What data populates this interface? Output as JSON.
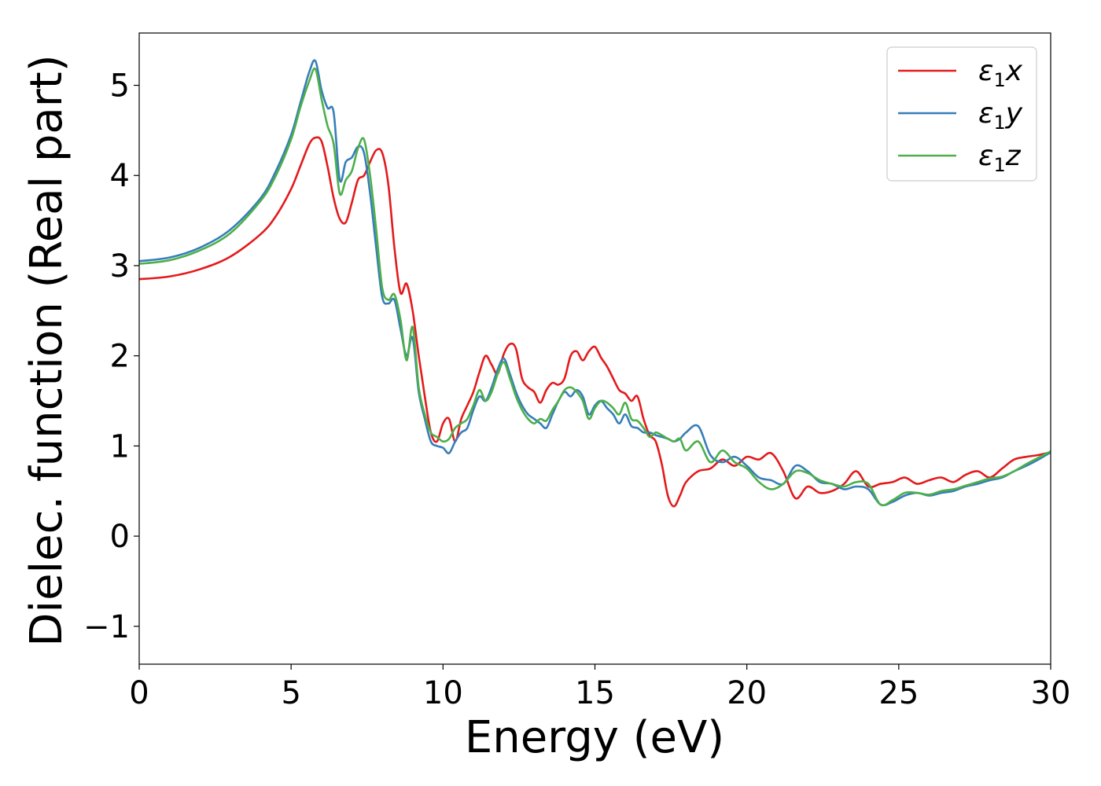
{
  "chart_data": {
    "type": "line",
    "title": "",
    "xlabel": "Energy (eV)",
    "ylabel": "Dielec. function (Real part)",
    "xlim": [
      0,
      30
    ],
    "ylim": [
      -1.42,
      5.58
    ],
    "xticks": [
      0,
      5,
      10,
      15,
      20,
      25,
      30
    ],
    "xtick_labels": [
      "0",
      "5",
      "10",
      "15",
      "20",
      "25",
      "30"
    ],
    "yticks": [
      -1,
      0,
      1,
      2,
      3,
      4,
      5
    ],
    "ytick_labels": [
      "−1",
      "0",
      "1",
      "2",
      "3",
      "4",
      "5"
    ],
    "grid": false,
    "legend_position": "top-right",
    "series": [
      {
        "name": "ε₁x",
        "legend_base": "ε",
        "legend_sub": "1",
        "legend_suffix": "x",
        "color": "#e41a1c",
        "x": [
          0,
          1,
          2,
          3,
          4,
          4.5,
          5,
          5.3,
          5.6,
          5.8,
          6.0,
          6.2,
          6.4,
          6.6,
          6.8,
          7.0,
          7.2,
          7.4,
          7.6,
          7.8,
          8.0,
          8.2,
          8.4,
          8.6,
          8.8,
          9.0,
          9.2,
          9.4,
          9.6,
          9.8,
          10.0,
          10.2,
          10.4,
          10.6,
          10.8,
          11.0,
          11.2,
          11.4,
          11.6,
          11.8,
          12.0,
          12.2,
          12.4,
          12.6,
          12.8,
          13.0,
          13.2,
          13.4,
          13.6,
          13.8,
          14.0,
          14.2,
          14.4,
          14.6,
          14.8,
          15.0,
          15.2,
          15.4,
          15.6,
          15.8,
          16.0,
          16.2,
          16.4,
          16.6,
          16.8,
          17.0,
          17.2,
          17.4,
          17.6,
          17.8,
          18.0,
          18.4,
          18.8,
          19.2,
          19.6,
          20.0,
          20.4,
          20.8,
          21.2,
          21.6,
          22.0,
          22.4,
          22.8,
          23.2,
          23.6,
          24.0,
          24.4,
          24.8,
          25.2,
          25.6,
          26.0,
          26.4,
          26.8,
          27.2,
          27.6,
          28.0,
          28.4,
          28.8,
          29.2,
          29.6,
          30.0
        ],
        "values": [
          2.85,
          2.88,
          2.96,
          3.1,
          3.35,
          3.55,
          3.85,
          4.1,
          4.35,
          4.42,
          4.38,
          4.1,
          3.75,
          3.52,
          3.48,
          3.7,
          3.95,
          4.0,
          4.15,
          4.28,
          4.25,
          3.9,
          3.2,
          2.7,
          2.8,
          2.5,
          2.0,
          1.55,
          1.15,
          1.05,
          1.25,
          1.3,
          1.05,
          1.3,
          1.45,
          1.6,
          1.82,
          2.0,
          1.9,
          1.8,
          2.02,
          2.13,
          2.08,
          1.75,
          1.65,
          1.6,
          1.48,
          1.62,
          1.7,
          1.68,
          1.75,
          2.0,
          2.05,
          1.95,
          2.05,
          2.1,
          1.98,
          1.88,
          1.75,
          1.62,
          1.58,
          1.5,
          1.55,
          1.3,
          1.12,
          1.05,
          0.8,
          0.45,
          0.33,
          0.45,
          0.6,
          0.72,
          0.75,
          0.85,
          0.78,
          0.88,
          0.85,
          0.92,
          0.72,
          0.42,
          0.55,
          0.48,
          0.5,
          0.58,
          0.72,
          0.55,
          0.58,
          0.6,
          0.65,
          0.58,
          0.62,
          0.65,
          0.6,
          0.68,
          0.72,
          0.65,
          0.75,
          0.85,
          0.88,
          0.9,
          0.93
        ]
      },
      {
        "name": "ε₁y",
        "legend_base": "ε",
        "legend_sub": "1",
        "legend_suffix": "y",
        "color": "#377eb8",
        "x": [
          0,
          1,
          2,
          3,
          4,
          4.5,
          5,
          5.3,
          5.6,
          5.8,
          6.0,
          6.2,
          6.4,
          6.6,
          6.8,
          7.0,
          7.2,
          7.4,
          7.6,
          7.8,
          8.0,
          8.2,
          8.4,
          8.6,
          8.8,
          9.0,
          9.2,
          9.4,
          9.6,
          9.8,
          10.0,
          10.2,
          10.4,
          10.6,
          10.8,
          11.0,
          11.2,
          11.4,
          11.6,
          11.8,
          12.0,
          12.2,
          12.4,
          12.6,
          12.8,
          13.0,
          13.2,
          13.4,
          13.6,
          13.8,
          14.0,
          14.2,
          14.4,
          14.6,
          14.8,
          15.0,
          15.2,
          15.4,
          15.6,
          15.8,
          16.0,
          16.2,
          16.4,
          16.6,
          16.8,
          17.0,
          17.2,
          17.4,
          17.6,
          17.8,
          18.0,
          18.4,
          18.8,
          19.2,
          19.6,
          20.0,
          20.4,
          20.8,
          21.2,
          21.6,
          22.0,
          22.4,
          22.8,
          23.2,
          23.6,
          24.0,
          24.4,
          24.8,
          25.2,
          25.6,
          26.0,
          26.4,
          26.8,
          27.2,
          27.6,
          28.0,
          28.4,
          28.8,
          29.2,
          29.6,
          30.0
        ],
        "values": [
          3.05,
          3.09,
          3.2,
          3.4,
          3.75,
          4.05,
          4.45,
          4.8,
          5.15,
          5.27,
          4.95,
          4.75,
          4.7,
          3.95,
          4.15,
          4.2,
          4.32,
          4.25,
          3.8,
          3.2,
          2.65,
          2.58,
          2.62,
          2.3,
          2.0,
          2.2,
          1.6,
          1.3,
          1.05,
          1.0,
          0.98,
          0.92,
          1.05,
          1.15,
          1.2,
          1.4,
          1.55,
          1.5,
          1.65,
          1.85,
          1.97,
          1.8,
          1.6,
          1.45,
          1.35,
          1.3,
          1.25,
          1.2,
          1.35,
          1.5,
          1.6,
          1.55,
          1.62,
          1.55,
          1.35,
          1.45,
          1.5,
          1.42,
          1.35,
          1.25,
          1.35,
          1.22,
          1.2,
          1.15,
          1.15,
          1.12,
          1.1,
          1.08,
          1.05,
          1.08,
          1.15,
          1.22,
          0.9,
          0.82,
          0.88,
          0.78,
          0.65,
          0.62,
          0.58,
          0.78,
          0.72,
          0.6,
          0.58,
          0.52,
          0.55,
          0.52,
          0.35,
          0.38,
          0.45,
          0.48,
          0.45,
          0.48,
          0.5,
          0.55,
          0.58,
          0.62,
          0.65,
          0.72,
          0.78,
          0.85,
          0.93
        ]
      },
      {
        "name": "ε₁z",
        "legend_base": "ε",
        "legend_sub": "1",
        "legend_suffix": "z",
        "color": "#4daf4a",
        "x": [
          0,
          1,
          2,
          3,
          4,
          4.5,
          5,
          5.3,
          5.6,
          5.8,
          6.0,
          6.2,
          6.4,
          6.6,
          6.8,
          7.0,
          7.2,
          7.4,
          7.6,
          7.8,
          8.0,
          8.2,
          8.4,
          8.6,
          8.8,
          9.0,
          9.2,
          9.4,
          9.6,
          9.8,
          10.0,
          10.2,
          10.4,
          10.6,
          10.8,
          11.0,
          11.2,
          11.4,
          11.6,
          11.8,
          12.0,
          12.2,
          12.4,
          12.6,
          12.8,
          13.0,
          13.2,
          13.4,
          13.6,
          13.8,
          14.0,
          14.2,
          14.4,
          14.6,
          14.8,
          15.0,
          15.2,
          15.4,
          15.6,
          15.8,
          16.0,
          16.2,
          16.4,
          16.6,
          16.8,
          17.0,
          17.2,
          17.4,
          17.6,
          17.8,
          18.0,
          18.4,
          18.8,
          19.2,
          19.6,
          20.0,
          20.4,
          20.8,
          21.2,
          21.6,
          22.0,
          22.4,
          22.8,
          23.2,
          23.6,
          24.0,
          24.4,
          24.8,
          25.2,
          25.6,
          26.0,
          26.4,
          26.8,
          27.2,
          27.6,
          28.0,
          28.4,
          28.8,
          29.2,
          29.6,
          30.0
        ],
        "values": [
          3.02,
          3.06,
          3.17,
          3.36,
          3.72,
          4.0,
          4.4,
          4.75,
          5.05,
          5.18,
          4.85,
          4.55,
          4.35,
          3.8,
          3.95,
          4.05,
          4.3,
          4.4,
          4.0,
          3.4,
          2.75,
          2.62,
          2.68,
          2.4,
          1.95,
          2.32,
          1.65,
          1.35,
          1.15,
          1.1,
          1.05,
          1.08,
          1.2,
          1.25,
          1.3,
          1.45,
          1.62,
          1.5,
          1.6,
          1.8,
          1.93,
          1.75,
          1.55,
          1.4,
          1.3,
          1.25,
          1.3,
          1.28,
          1.4,
          1.5,
          1.62,
          1.65,
          1.6,
          1.5,
          1.3,
          1.42,
          1.5,
          1.48,
          1.42,
          1.35,
          1.48,
          1.3,
          1.28,
          1.2,
          1.1,
          1.15,
          1.12,
          1.08,
          1.05,
          1.08,
          0.95,
          1.05,
          0.82,
          0.95,
          0.82,
          0.75,
          0.6,
          0.52,
          0.58,
          0.72,
          0.7,
          0.62,
          0.58,
          0.55,
          0.6,
          0.58,
          0.35,
          0.4,
          0.48,
          0.48,
          0.46,
          0.5,
          0.52,
          0.56,
          0.6,
          0.64,
          0.66,
          0.72,
          0.8,
          0.87,
          0.94
        ]
      }
    ]
  }
}
